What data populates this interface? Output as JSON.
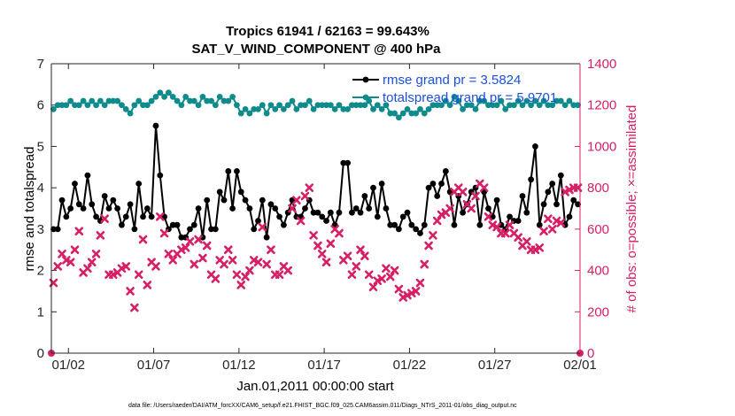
{
  "chart_data": {
    "type": "line",
    "title": "Tropics 61941 / 62163 = 99.643%",
    "subtitle": "SAT_V_WIND_COMPONENT @ 400 hPa",
    "xlabel": "Jan.01,2011 00:00:00 start",
    "ylabel": "rmse and totalspread",
    "y2label": "# of obs: o=possible; ×=assimilated",
    "xlim": [
      0,
      31
    ],
    "ylim": [
      0,
      7
    ],
    "y2lim": [
      0,
      1400
    ],
    "x_tick_values": [
      1,
      6,
      11,
      16,
      21,
      26,
      31
    ],
    "x_tick_labels": [
      "01/02",
      "01/07",
      "01/12",
      "01/17",
      "01/22",
      "01/27",
      "02/01"
    ],
    "y_ticks": [
      "0",
      "1",
      "2",
      "3",
      "4",
      "5",
      "6",
      "7"
    ],
    "y2_ticks": [
      "0",
      "200",
      "400",
      "600",
      "800",
      "1000",
      "1200",
      "1400"
    ],
    "footnote": "data file: /Users/raeder/DAI/ATM_forcXX/CAM6_setup/f.e21.FHIST_BGC.f09_025.CAM6assim.011/Diags_NTrS_2011-01/obs_diag_output.nc",
    "series": [
      {
        "name": "rmse grand pr = 3.5824",
        "color": "#000000",
        "marker": "dot",
        "axis": "left",
        "x": [
          0.125,
          0.375,
          0.625,
          0.875,
          1.125,
          1.375,
          1.625,
          1.875,
          2.125,
          2.375,
          2.625,
          2.875,
          3.125,
          3.375,
          3.625,
          3.875,
          4.125,
          4.375,
          4.625,
          4.875,
          5.125,
          5.375,
          5.625,
          5.875,
          6.125,
          6.375,
          6.625,
          6.875,
          7.125,
          7.375,
          7.625,
          7.875,
          8.125,
          8.375,
          8.625,
          8.875,
          9.125,
          9.375,
          9.625,
          9.875,
          10.125,
          10.375,
          10.625,
          10.875,
          11.125,
          11.375,
          11.625,
          11.875,
          12.125,
          12.375,
          12.625,
          12.875,
          13.125,
          13.375,
          13.625,
          13.875,
          14.125,
          14.375,
          14.625,
          14.875,
          15.125,
          15.375,
          15.625,
          15.875,
          16.125,
          16.375,
          16.625,
          16.875,
          17.125,
          17.375,
          17.625,
          17.875,
          18.125,
          18.375,
          18.625,
          18.875,
          19.125,
          19.375,
          19.625,
          19.875,
          20.125,
          20.375,
          20.625,
          20.875,
          21.125,
          21.375,
          21.625,
          21.875,
          22.125,
          22.375,
          22.625,
          22.875,
          23.125,
          23.375,
          23.625,
          23.875,
          24.125,
          24.375,
          24.625,
          24.875,
          25.125,
          25.375,
          25.625,
          25.875,
          26.125,
          26.375,
          26.625,
          26.875,
          27.125,
          27.375,
          27.625,
          27.875,
          28.125,
          28.375,
          28.625,
          28.875,
          29.125,
          29.375,
          29.625,
          29.875,
          30.125,
          30.375,
          30.625,
          30.875
        ],
        "y": [
          3.0,
          3.0,
          3.7,
          3.3,
          3.5,
          4.1,
          3.6,
          3.5,
          4.3,
          3.6,
          3.3,
          3.2,
          3.8,
          3.5,
          3.7,
          3.5,
          3.1,
          3.3,
          3.6,
          3.0,
          4.1,
          3.3,
          3.5,
          3.3,
          5.5,
          4.3,
          3.3,
          3.0,
          3.1,
          3.1,
          2.8,
          2.8,
          3.0,
          3.1,
          3.5,
          2.8,
          3.7,
          3.0,
          3.0,
          3.9,
          3.7,
          4.4,
          3.5,
          4.4,
          3.9,
          3.7,
          3.5,
          3.0,
          3.2,
          3.7,
          2.8,
          3.6,
          3.5,
          3.3,
          3.1,
          3.4,
          3.7,
          3.3,
          3.3,
          3.5,
          3.7,
          3.4,
          3.4,
          3.3,
          3.2,
          3.4,
          3.1,
          3.4,
          4.6,
          4.6,
          3.4,
          3.5,
          3.4,
          3.8,
          3.5,
          4.0,
          3.3,
          4.1,
          3.5,
          3.1,
          3.1,
          3.0,
          3.3,
          3.4,
          3.1,
          3.0,
          2.9,
          3.1,
          4.0,
          4.1,
          3.8,
          4.1,
          4.4,
          3.9,
          3.1,
          3.8,
          3.4,
          3.6,
          3.9,
          4.0,
          3.1,
          3.9,
          3.5,
          3.3,
          3.7,
          3.1,
          3.0,
          3.3,
          3.2,
          3.2,
          3.8,
          3.4,
          4.2,
          5.0,
          3.1,
          3.6,
          3.9,
          4.1,
          3.6,
          4.3,
          3.1,
          3.3,
          3.7,
          3.6
        ]
      },
      {
        "name": "totalspread grand pr = 5.9701",
        "color": "#0f8b8b",
        "marker": "dot",
        "axis": "left",
        "x": [
          0.125,
          0.375,
          0.625,
          0.875,
          1.125,
          1.375,
          1.625,
          1.875,
          2.125,
          2.375,
          2.625,
          2.875,
          3.125,
          3.375,
          3.625,
          3.875,
          4.125,
          4.375,
          4.625,
          4.875,
          5.125,
          5.375,
          5.625,
          5.875,
          6.125,
          6.375,
          6.625,
          6.875,
          7.125,
          7.375,
          7.625,
          7.875,
          8.125,
          8.375,
          8.625,
          8.875,
          9.125,
          9.375,
          9.625,
          9.875,
          10.125,
          10.375,
          10.625,
          10.875,
          11.125,
          11.375,
          11.625,
          11.875,
          12.125,
          12.375,
          12.625,
          12.875,
          13.125,
          13.375,
          13.625,
          13.875,
          14.125,
          14.375,
          14.625,
          14.875,
          15.125,
          15.375,
          15.625,
          15.875,
          16.125,
          16.375,
          16.625,
          16.875,
          17.125,
          17.375,
          17.625,
          17.875,
          18.125,
          18.375,
          18.625,
          18.875,
          19.125,
          19.375,
          19.625,
          19.875,
          20.125,
          20.375,
          20.625,
          20.875,
          21.125,
          21.375,
          21.625,
          21.875,
          22.125,
          22.375,
          22.625,
          22.875,
          23.125,
          23.375,
          23.625,
          23.875,
          24.125,
          24.375,
          24.625,
          24.875,
          25.125,
          25.375,
          25.625,
          25.875,
          26.125,
          26.375,
          26.625,
          26.875,
          27.125,
          27.375,
          27.625,
          27.875,
          28.125,
          28.375,
          28.625,
          28.875,
          29.125,
          29.375,
          29.625,
          29.875,
          30.125,
          30.375,
          30.625,
          30.875
        ],
        "y": [
          5.9,
          6.0,
          6.0,
          6.0,
          6.1,
          6.0,
          6.0,
          6.1,
          6.0,
          6.1,
          6.0,
          6.1,
          6.0,
          6.1,
          6.1,
          6.1,
          6.0,
          5.9,
          5.8,
          6.0,
          6.1,
          6.0,
          6.0,
          6.1,
          6.2,
          6.3,
          6.2,
          6.3,
          6.2,
          6.1,
          6.0,
          6.2,
          6.1,
          6.1,
          6.0,
          6.2,
          6.1,
          6.1,
          6.0,
          6.2,
          6.1,
          6.1,
          6.2,
          6.0,
          5.8,
          5.9,
          5.8,
          5.9,
          5.9,
          6.0,
          5.8,
          6.0,
          5.9,
          6.0,
          5.9,
          6.0,
          6.1,
          5.9,
          6.0,
          6.0,
          6.1,
          5.9,
          6.0,
          6.0,
          6.0,
          6.0,
          5.9,
          6.0,
          5.9,
          5.9,
          6.0,
          6.0,
          6.0,
          6.0,
          6.1,
          5.9,
          6.0,
          5.9,
          6.0,
          5.8,
          5.8,
          5.7,
          5.8,
          5.9,
          5.8,
          5.8,
          5.9,
          5.8,
          5.9,
          6.0,
          6.0,
          6.0,
          6.1,
          6.0,
          6.2,
          6.1,
          5.9,
          6.0,
          6.0,
          5.9,
          6.1,
          6.1,
          6.0,
          6.0,
          6.0,
          6.1,
          5.9,
          6.0,
          6.0,
          6.1,
          6.0,
          6.1,
          6.0,
          6.1,
          6.0,
          6.1,
          6.0,
          6.0,
          6.1,
          6.1,
          6.0,
          6.1,
          6.0,
          6.0
        ]
      },
      {
        "name": "obs assimilated",
        "color": "#d61f66",
        "marker": "cross",
        "axis": "right",
        "x": [
          0.125,
          0.375,
          0.625,
          0.875,
          1.125,
          1.375,
          1.625,
          1.875,
          2.125,
          2.375,
          2.625,
          2.875,
          3.125,
          3.375,
          3.625,
          3.875,
          4.125,
          4.375,
          4.625,
          4.875,
          5.125,
          5.375,
          5.625,
          5.875,
          6.125,
          6.375,
          6.625,
          6.875,
          7.125,
          7.375,
          7.625,
          7.875,
          8.125,
          8.375,
          8.625,
          8.875,
          9.125,
          9.375,
          9.625,
          9.875,
          10.125,
          10.375,
          10.625,
          10.875,
          11.125,
          11.375,
          11.625,
          11.875,
          12.125,
          12.375,
          12.625,
          12.875,
          13.125,
          13.375,
          13.625,
          13.875,
          14.125,
          14.375,
          14.625,
          14.875,
          15.125,
          15.375,
          15.625,
          15.875,
          16.125,
          16.375,
          16.625,
          16.875,
          17.125,
          17.375,
          17.625,
          17.875,
          18.125,
          18.375,
          18.625,
          18.875,
          19.125,
          19.375,
          19.625,
          19.875,
          20.125,
          20.375,
          20.625,
          20.875,
          21.125,
          21.375,
          21.625,
          21.875,
          22.125,
          22.375,
          22.625,
          22.875,
          23.125,
          23.375,
          23.625,
          23.875,
          24.125,
          24.375,
          24.625,
          24.875,
          25.125,
          25.375,
          25.625,
          25.875,
          26.125,
          26.375,
          26.625,
          26.875,
          27.125,
          27.375,
          27.625,
          27.875,
          28.125,
          28.375,
          28.625,
          28.875,
          29.125,
          29.375,
          29.625,
          29.875,
          30.125,
          30.375,
          30.625,
          30.875
        ],
        "y": [
          340,
          420,
          480,
          450,
          440,
          500,
          590,
          390,
          410,
          440,
          480,
          570,
          650,
          380,
          380,
          390,
          410,
          420,
          300,
          220,
          380,
          550,
          330,
          440,
          420,
          660,
          580,
          480,
          450,
          480,
          500,
          510,
          540,
          430,
          550,
          460,
          520,
          380,
          360,
          450,
          430,
          500,
          450,
          380,
          330,
          370,
          400,
          450,
          440,
          610,
          430,
          500,
          380,
          380,
          420,
          400,
          700,
          740,
          640,
          760,
          800,
          570,
          520,
          480,
          440,
          530,
          600,
          580,
          450,
          470,
          380,
          420,
          500,
          470,
          380,
          320,
          350,
          360,
          410,
          370,
          400,
          310,
          270,
          280,
          290,
          300,
          340,
          430,
          520,
          570,
          640,
          670,
          680,
          700,
          780,
          800,
          780,
          720,
          700,
          760,
          820,
          800,
          660,
          620,
          610,
          580,
          580,
          620,
          580,
          560,
          520,
          540,
          500,
          500,
          510,
          590,
          650,
          600,
          640,
          630,
          780,
          790,
          800,
          800
        ]
      }
    ]
  }
}
